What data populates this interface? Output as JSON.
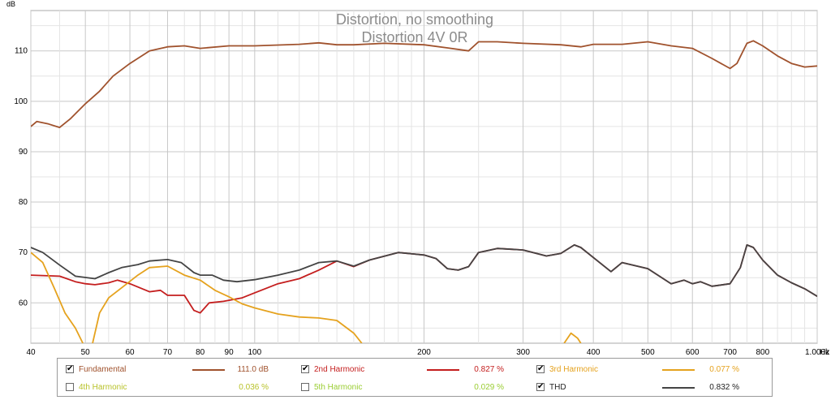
{
  "chart_data": {
    "type": "line",
    "title": "Distortion, no smoothing",
    "subtitle": "Distortion 4V 0R",
    "ylabel": "dB",
    "xlabel": "",
    "x_unit_label": "Hz",
    "xscale": "log",
    "xlim": [
      40,
      1000
    ],
    "ylim": [
      52,
      118
    ],
    "grid": true,
    "y_ticks": [
      60,
      70,
      80,
      90,
      100,
      110
    ],
    "x_ticks": [
      {
        "v": 40,
        "label": "40"
      },
      {
        "v": 50,
        "label": "50"
      },
      {
        "v": 60,
        "label": "60"
      },
      {
        "v": 70,
        "label": "70"
      },
      {
        "v": 80,
        "label": "80"
      },
      {
        "v": 90,
        "label": "90"
      },
      {
        "v": 100,
        "label": "100"
      },
      {
        "v": 200,
        "label": "200"
      },
      {
        "v": 300,
        "label": "300"
      },
      {
        "v": 400,
        "label": "400"
      },
      {
        "v": 500,
        "label": "500"
      },
      {
        "v": 600,
        "label": "600"
      },
      {
        "v": 700,
        "label": "700"
      },
      {
        "v": 800,
        "label": "800"
      },
      {
        "v": 1000,
        "label": "1.000k"
      }
    ],
    "x_minor_grid": [
      45,
      55,
      65,
      75,
      85,
      95,
      110,
      120,
      130,
      140,
      150,
      160,
      170,
      180,
      190,
      250,
      350,
      450,
      550,
      650,
      750,
      850,
      900,
      950
    ],
    "series": [
      {
        "name": "Fundamental",
        "color": "#a0522d",
        "points": [
          [
            40,
            95
          ],
          [
            41,
            96
          ],
          [
            43,
            95.5
          ],
          [
            45,
            94.8
          ],
          [
            47,
            96.5
          ],
          [
            50,
            99.5
          ],
          [
            53,
            102
          ],
          [
            56,
            105
          ],
          [
            60,
            107.5
          ],
          [
            65,
            110
          ],
          [
            70,
            110.8
          ],
          [
            75,
            111
          ],
          [
            80,
            110.5
          ],
          [
            90,
            111
          ],
          [
            100,
            111
          ],
          [
            120,
            111.3
          ],
          [
            130,
            111.6
          ],
          [
            140,
            111.2
          ],
          [
            150,
            111.2
          ],
          [
            170,
            111.5
          ],
          [
            200,
            111.2
          ],
          [
            220,
            110.6
          ],
          [
            240,
            110
          ],
          [
            250,
            111.8
          ],
          [
            270,
            111.8
          ],
          [
            300,
            111.5
          ],
          [
            350,
            111.2
          ],
          [
            380,
            110.8
          ],
          [
            400,
            111.3
          ],
          [
            450,
            111.3
          ],
          [
            500,
            111.8
          ],
          [
            550,
            111
          ],
          [
            600,
            110.5
          ],
          [
            650,
            108.5
          ],
          [
            700,
            106.5
          ],
          [
            720,
            107.5
          ],
          [
            750,
            111.5
          ],
          [
            770,
            112
          ],
          [
            800,
            111
          ],
          [
            850,
            109
          ],
          [
            900,
            107.5
          ],
          [
            950,
            106.8
          ],
          [
            1000,
            107
          ]
        ]
      },
      {
        "name": "2nd Harmonic",
        "color": "#c41e1e",
        "points": [
          [
            40,
            65.5
          ],
          [
            45,
            65.3
          ],
          [
            48,
            64.2
          ],
          [
            50,
            63.8
          ],
          [
            52,
            63.6
          ],
          [
            55,
            64
          ],
          [
            57,
            64.5
          ],
          [
            60,
            63.8
          ],
          [
            65,
            62.2
          ],
          [
            68,
            62.5
          ],
          [
            70,
            61.5
          ],
          [
            75,
            61.5
          ],
          [
            78,
            58.5
          ],
          [
            80,
            58
          ],
          [
            83,
            60
          ],
          [
            88,
            60.3
          ],
          [
            95,
            61
          ],
          [
            100,
            62
          ],
          [
            110,
            63.8
          ],
          [
            120,
            64.8
          ],
          [
            130,
            66.5
          ],
          [
            140,
            68.3
          ],
          [
            150,
            67.2
          ],
          [
            160,
            68.5
          ],
          [
            180,
            70
          ],
          [
            200,
            69.5
          ],
          [
            210,
            68.8
          ],
          [
            220,
            66.8
          ],
          [
            230,
            66.5
          ],
          [
            240,
            67.2
          ],
          [
            250,
            70
          ],
          [
            270,
            70.8
          ],
          [
            300,
            70.5
          ],
          [
            330,
            69.3
          ],
          [
            350,
            69.8
          ],
          [
            370,
            71.5
          ],
          [
            380,
            71
          ],
          [
            400,
            69
          ],
          [
            430,
            66.2
          ],
          [
            450,
            68
          ],
          [
            500,
            66.8
          ],
          [
            550,
            63.8
          ],
          [
            580,
            64.5
          ],
          [
            600,
            63.8
          ],
          [
            620,
            64.2
          ],
          [
            650,
            63.3
          ],
          [
            700,
            63.8
          ],
          [
            730,
            67
          ],
          [
            750,
            71.5
          ],
          [
            770,
            71
          ],
          [
            800,
            68.5
          ],
          [
            850,
            65.5
          ],
          [
            900,
            64
          ],
          [
            950,
            62.8
          ],
          [
            1000,
            61.3
          ]
        ]
      },
      {
        "name": "3rd Harmonic",
        "color": "#e5a21e",
        "points": [
          [
            40,
            70
          ],
          [
            42,
            68
          ],
          [
            44,
            63
          ],
          [
            46,
            58
          ],
          [
            48,
            55
          ],
          [
            49.5,
            52
          ],
          [
            null,
            null
          ],
          [
            51.5,
            52
          ],
          [
            53,
            58
          ],
          [
            55,
            61
          ],
          [
            58,
            63
          ],
          [
            62,
            65.5
          ],
          [
            65,
            67
          ],
          [
            70,
            67.3
          ],
          [
            75,
            65.5
          ],
          [
            80,
            64.5
          ],
          [
            85,
            62.5
          ],
          [
            90,
            61.2
          ],
          [
            95,
            59.8
          ],
          [
            100,
            59
          ],
          [
            110,
            57.8
          ],
          [
            120,
            57.2
          ],
          [
            130,
            57
          ],
          [
            140,
            56.5
          ],
          [
            150,
            54
          ],
          [
            155,
            52
          ],
          [
            null,
            null
          ],
          [
            355,
            52
          ],
          [
            365,
            54
          ],
          [
            375,
            53
          ],
          [
            380,
            52
          ]
        ]
      },
      {
        "name": "THD",
        "color": "#444444",
        "points": [
          [
            40,
            71
          ],
          [
            42,
            70
          ],
          [
            45,
            67.5
          ],
          [
            48,
            65.3
          ],
          [
            52,
            64.8
          ],
          [
            55,
            66
          ],
          [
            58,
            67
          ],
          [
            62,
            67.6
          ],
          [
            65,
            68.3
          ],
          [
            70,
            68.6
          ],
          [
            74,
            68
          ],
          [
            78,
            66
          ],
          [
            80,
            65.5
          ],
          [
            84,
            65.5
          ],
          [
            88,
            64.5
          ],
          [
            93,
            64.2
          ],
          [
            100,
            64.6
          ],
          [
            110,
            65.5
          ],
          [
            120,
            66.5
          ],
          [
            130,
            68
          ],
          [
            140,
            68.3
          ],
          [
            150,
            67.3
          ],
          [
            160,
            68.5
          ],
          [
            180,
            70
          ],
          [
            200,
            69.5
          ],
          [
            210,
            68.8
          ],
          [
            220,
            66.8
          ],
          [
            230,
            66.5
          ],
          [
            240,
            67.2
          ],
          [
            250,
            70
          ],
          [
            270,
            70.8
          ],
          [
            300,
            70.5
          ],
          [
            330,
            69.3
          ],
          [
            350,
            69.8
          ],
          [
            370,
            71.5
          ],
          [
            380,
            71
          ],
          [
            400,
            69
          ],
          [
            430,
            66.2
          ],
          [
            450,
            68
          ],
          [
            500,
            66.8
          ],
          [
            550,
            63.8
          ],
          [
            580,
            64.5
          ],
          [
            600,
            63.8
          ],
          [
            620,
            64.2
          ],
          [
            650,
            63.3
          ],
          [
            700,
            63.8
          ],
          [
            730,
            67
          ],
          [
            750,
            71.5
          ],
          [
            770,
            71
          ],
          [
            800,
            68.5
          ],
          [
            850,
            65.5
          ],
          [
            900,
            64
          ],
          [
            950,
            62.8
          ],
          [
            1000,
            61.3
          ]
        ]
      }
    ]
  },
  "legend": {
    "items": [
      {
        "label": "Fundamental",
        "value": "111.0 dB",
        "checked": true,
        "color": "#a0522d",
        "label_color": "#a0522d",
        "value_color": "#a0522d"
      },
      {
        "label": "2nd Harmonic",
        "value": "0.827 %",
        "checked": true,
        "color": "#c41e1e",
        "label_color": "#c41e1e",
        "value_color": "#c41e1e"
      },
      {
        "label": "3rd Harmonic",
        "value": "0.077 %",
        "checked": true,
        "color": "#e5a21e",
        "label_color": "#e5a21e",
        "value_color": "#e5a21e"
      },
      {
        "label": "4th Harmonic",
        "value": "0.036 %",
        "checked": false,
        "color": "",
        "label_color": "#b8c22a",
        "value_color": "#b8c22a"
      },
      {
        "label": "5th Harmonic",
        "value": "0.029 %",
        "checked": false,
        "color": "",
        "label_color": "#9acd32",
        "value_color": "#9acd32"
      },
      {
        "label": "THD",
        "value": "0.832 %",
        "checked": true,
        "color": "#444444",
        "label_color": "#222222",
        "value_color": "#222222"
      }
    ],
    "check_mark": "✔"
  }
}
